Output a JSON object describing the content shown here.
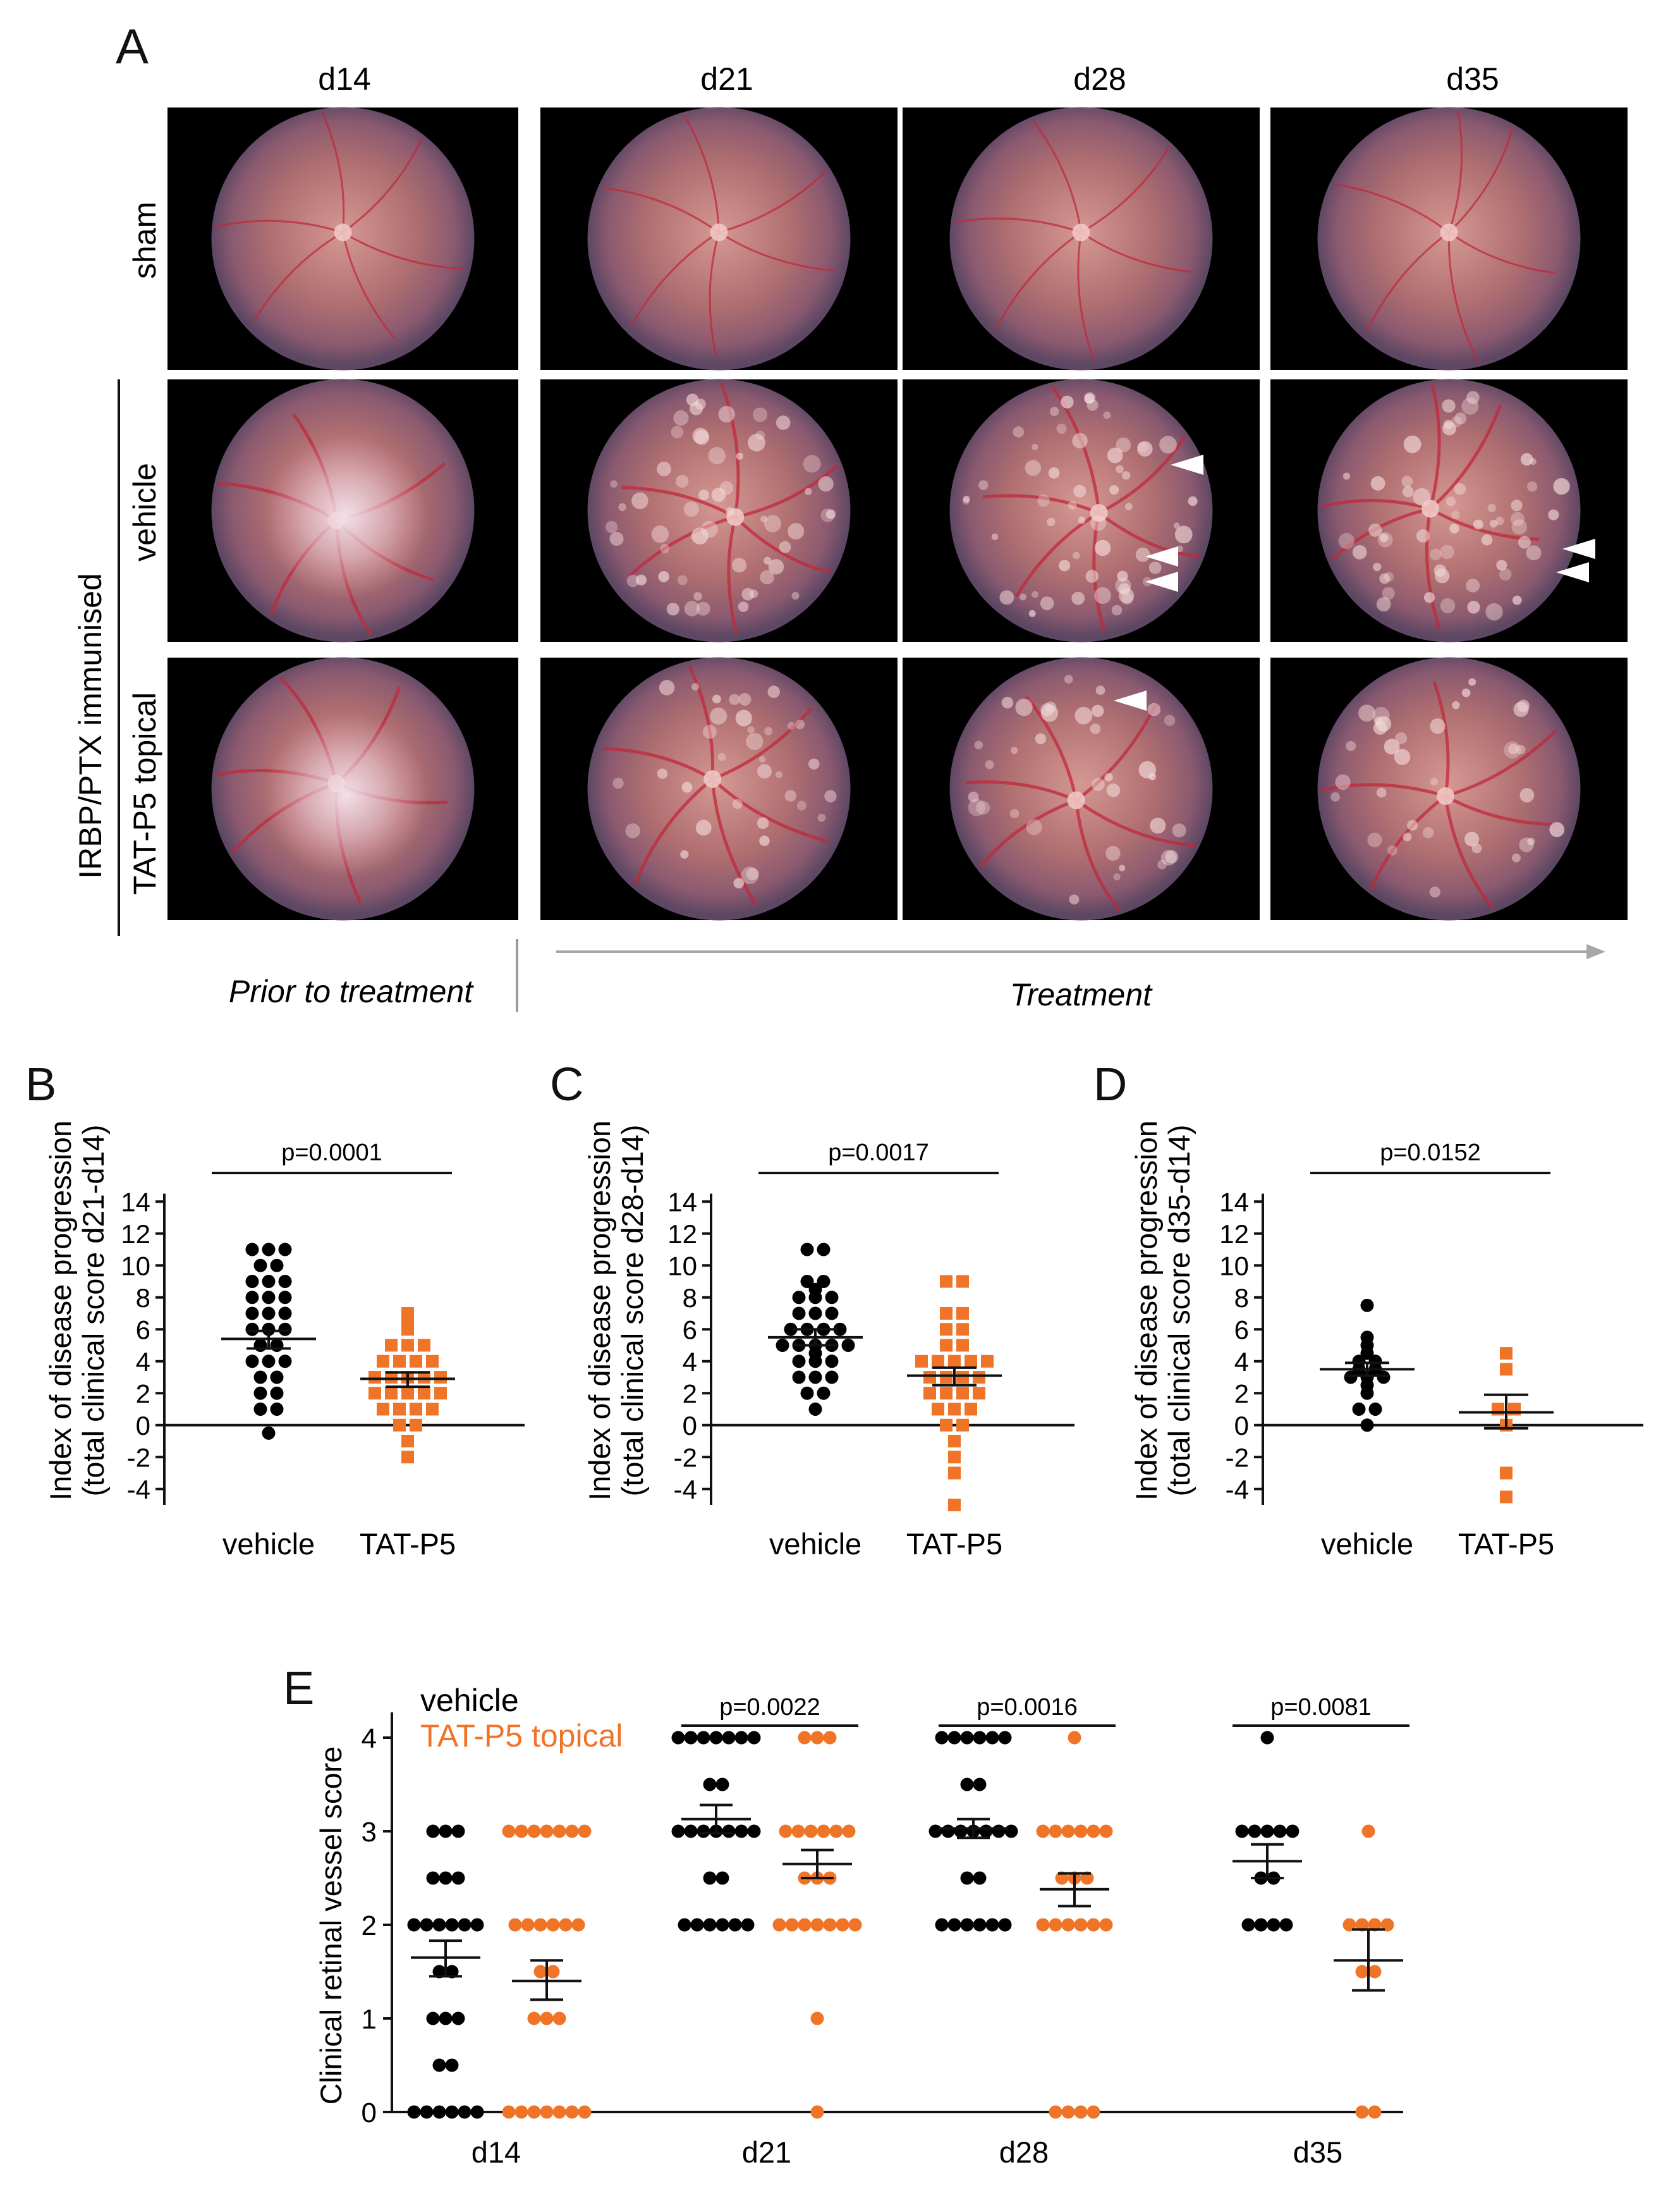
{
  "panel_a": {
    "letter": "A",
    "columns": [
      "d14",
      "d21",
      "d28",
      "d35"
    ],
    "rows": [
      "sham",
      "vehicle",
      "TAT-P5 topical"
    ],
    "group_label": "IRBP/PTX immunised",
    "prior_label": "Prior to treatment",
    "treatment_label": "Treatment",
    "colors": {
      "fundus_center": "#c98a86",
      "fundus_mid": "#a56468",
      "fundus_edge": "#6b4b66",
      "vessel": "#c0283a",
      "lesion": "#f1d7d6",
      "bright": "#efe3ee"
    }
  },
  "chart_data": [
    {
      "type": "scatter",
      "id": "B",
      "letter": "B",
      "title": "",
      "ylabel_line1": "Index of disease progression",
      "ylabel_line2": "(total clinical score d21-d14)",
      "ylim": [
        -5,
        15
      ],
      "yticks": [
        14,
        12,
        10,
        8,
        6,
        4,
        2,
        0,
        -2,
        -4
      ],
      "categories": [
        "vehicle",
        "TAT-P5"
      ],
      "pvalue": "p=0.0001",
      "series": [
        {
          "name": "vehicle",
          "color": "#000000",
          "marker": "circle",
          "mean": 5.4,
          "sem_low": 4.8,
          "sem_high": 5.9,
          "values": [
            11,
            11,
            11,
            10,
            10,
            9,
            9,
            9,
            8,
            8,
            8,
            7,
            7,
            7,
            6,
            6,
            6,
            5,
            5,
            4,
            4,
            4,
            3,
            3,
            2,
            2,
            1,
            1,
            -0.5
          ]
        },
        {
          "name": "TAT-P5",
          "color": "#f07427",
          "marker": "square",
          "mean": 2.9,
          "sem_low": 2.4,
          "sem_high": 3.3,
          "values": [
            7,
            6.5,
            6,
            5,
            5,
            5,
            4,
            4,
            4,
            4,
            3,
            3,
            3,
            3,
            3,
            2,
            2,
            2,
            2,
            2,
            1,
            1,
            1,
            1,
            0,
            0,
            -1,
            -2
          ]
        }
      ]
    },
    {
      "type": "scatter",
      "id": "C",
      "letter": "C",
      "title": "",
      "ylabel_line1": "Index of disease progression",
      "ylabel_line2": "(total clinical score d28-d14)",
      "ylim": [
        -5,
        15
      ],
      "yticks": [
        14,
        12,
        10,
        8,
        6,
        4,
        2,
        0,
        -2,
        -4
      ],
      "categories": [
        "vehicle",
        "TAT-P5"
      ],
      "pvalue": "p=0.0017",
      "series": [
        {
          "name": "vehicle",
          "color": "#000000",
          "marker": "circle",
          "mean": 5.5,
          "sem_low": 5.0,
          "sem_high": 6.0,
          "values": [
            11,
            11,
            9,
            9,
            8.5,
            8,
            8,
            8,
            7,
            7,
            7,
            6,
            6,
            6,
            6,
            5,
            5,
            5,
            5,
            5,
            4.5,
            4,
            4,
            4,
            3,
            3,
            3,
            2,
            2,
            1
          ]
        },
        {
          "name": "TAT-P5",
          "color": "#f07427",
          "marker": "square",
          "mean": 3.1,
          "sem_low": 2.5,
          "sem_high": 3.6,
          "values": [
            9,
            9,
            7,
            7,
            6,
            6,
            5,
            5,
            4,
            4,
            4,
            4,
            4,
            3,
            3,
            3,
            3,
            2,
            2,
            2,
            2,
            1,
            1,
            1,
            0,
            0,
            -1,
            -2,
            -3,
            -5
          ]
        }
      ]
    },
    {
      "type": "scatter",
      "id": "D",
      "letter": "D",
      "title": "",
      "ylabel_line1": "Index of disease progression",
      "ylabel_line2": "(total clinical score d35-d14)",
      "ylim": [
        -5,
        15
      ],
      "yticks": [
        14,
        12,
        10,
        8,
        6,
        4,
        2,
        0,
        -2,
        -4
      ],
      "categories": [
        "vehicle",
        "TAT-P5"
      ],
      "pvalue": "p=0.0152",
      "series": [
        {
          "name": "vehicle",
          "color": "#000000",
          "marker": "circle",
          "mean": 3.5,
          "sem_low": 3.1,
          "sem_high": 3.9,
          "values": [
            7.5,
            5.5,
            5,
            4.5,
            4,
            4,
            3.5,
            3.5,
            3,
            3,
            3,
            2.5,
            2,
            1,
            1,
            0
          ]
        },
        {
          "name": "TAT-P5",
          "color": "#f07427",
          "marker": "square",
          "mean": 0.8,
          "sem_low": -0.2,
          "sem_high": 1.9,
          "values": [
            4.5,
            3.5,
            1,
            1,
            0,
            -3,
            -4.5
          ]
        }
      ]
    },
    {
      "type": "scatter",
      "id": "E",
      "letter": "E",
      "title": "",
      "ylabel": "Clinical retinal vessel score",
      "ylim": [
        0,
        4
      ],
      "yticks": [
        4,
        3,
        2,
        1,
        0
      ],
      "categories": [
        "d14",
        "d21",
        "d28",
        "d35"
      ],
      "pvalues": [
        "",
        "p=0.0022",
        "p=0.0016",
        "p=0.0081"
      ],
      "legend": [
        "vehicle",
        "TAT-P5 topical"
      ],
      "series": [
        {
          "name": "vehicle",
          "color": "#000000",
          "marker": "circle",
          "means": [
            1.65,
            3.13,
            3.03,
            2.68
          ],
          "sems": [
            [
              1.45,
              1.83
            ],
            [
              2.98,
              3.28
            ],
            [
              2.93,
              3.13
            ],
            [
              2.5,
              2.86
            ]
          ],
          "values": [
            [
              3,
              3,
              3,
              2.5,
              2.5,
              2.5,
              2,
              2,
              2,
              2,
              2,
              2,
              1.5,
              1.5,
              1,
              1,
              1,
              0.5,
              0.5,
              0,
              0,
              0,
              0,
              0,
              0
            ],
            [
              4,
              4,
              4,
              4,
              4,
              4,
              4,
              3.5,
              3.5,
              3,
              3,
              3,
              3,
              3,
              3,
              3,
              2.5,
              2.5,
              2,
              2,
              2,
              2,
              2,
              2
            ],
            [
              4,
              4,
              4,
              4,
              4,
              4,
              3.5,
              3.5,
              3,
              3,
              3,
              3,
              3,
              3,
              3,
              2.5,
              2.5,
              2,
              2,
              2,
              2,
              2,
              2
            ],
            [
              4,
              3,
              3,
              3,
              3,
              3,
              2.5,
              2.5,
              2,
              2,
              2,
              2
            ]
          ]
        },
        {
          "name": "TAT-P5 topical",
          "color": "#f07427",
          "marker": "circle",
          "means": [
            1.4,
            2.65,
            2.38,
            1.62
          ],
          "sems": [
            [
              1.2,
              1.62
            ],
            [
              2.5,
              2.8
            ],
            [
              2.2,
              2.55
            ],
            [
              1.3,
              1.95
            ]
          ],
          "values": [
            [
              3,
              3,
              3,
              3,
              3,
              3,
              3,
              2,
              2,
              2,
              2,
              2,
              2,
              1.5,
              1.5,
              1,
              1,
              1,
              0,
              0,
              0,
              0,
              0,
              0,
              0
            ],
            [
              4,
              4,
              4,
              3,
              3,
              3,
              3,
              3,
              3,
              2.5,
              2.5,
              2.5,
              2,
              2,
              2,
              2,
              2,
              2,
              2,
              1,
              0
            ],
            [
              4,
              3,
              3,
              3,
              3,
              3,
              3,
              2.5,
              2.5,
              2.5,
              2,
              2,
              2,
              2,
              2,
              2,
              0,
              0,
              0,
              0
            ],
            [
              3,
              2,
              2,
              2,
              2,
              1.5,
              1.5,
              0,
              0
            ]
          ]
        }
      ]
    }
  ]
}
